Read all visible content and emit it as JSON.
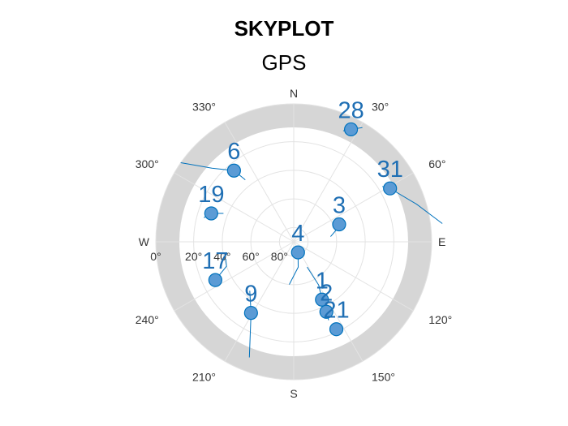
{
  "title": "SKYPLOT",
  "subtitle": "GPS",
  "chart_data": {
    "type": "scatter",
    "projection": "polar-skyplot",
    "cardinal_labels": {
      "N": "N",
      "E": "E",
      "S": "S",
      "W": "W"
    },
    "azimuth_tick_labels": [
      {
        "az": 30,
        "text": "30°"
      },
      {
        "az": 60,
        "text": "60°"
      },
      {
        "az": 120,
        "text": "120°"
      },
      {
        "az": 150,
        "text": "150°"
      },
      {
        "az": 210,
        "text": "210°"
      },
      {
        "az": 240,
        "text": "240°"
      },
      {
        "az": 300,
        "text": "300°"
      },
      {
        "az": 330,
        "text": "330°"
      }
    ],
    "elevation_tick_labels": [
      {
        "el": 0,
        "text": "0°"
      },
      {
        "el": 20,
        "text": "20°"
      },
      {
        "el": 40,
        "text": "40°"
      },
      {
        "el": 60,
        "text": "60°"
      },
      {
        "el": 80,
        "text": "80°"
      }
    ],
    "mask_band_elevation": [
      0,
      10
    ],
    "grid": true,
    "marker_color": "#0072bd",
    "marker_fill": "#5b9bd5",
    "satellites": [
      {
        "id": "28",
        "az": 27,
        "el": 5,
        "track": [
          [
            24,
            7
          ],
          [
            27,
            5
          ],
          [
            31,
            2
          ]
        ]
      },
      {
        "id": "31",
        "az": 61,
        "el": 13,
        "track": [
          [
            58,
            17
          ],
          [
            61,
            13
          ],
          [
            73,
            4
          ],
          [
            83,
            -5
          ]
        ]
      },
      {
        "id": "3",
        "az": 69,
        "el": 56,
        "track": [
          [
            82,
            64
          ],
          [
            72,
            57
          ],
          [
            69,
            56
          ]
        ]
      },
      {
        "id": "6",
        "az": 320,
        "el": 25,
        "track": [
          [
            305,
            0
          ],
          [
            312,
            13
          ],
          [
            320,
            25
          ],
          [
            322,
            35
          ]
        ]
      },
      {
        "id": "19",
        "az": 289,
        "el": 29,
        "track": [
          [
            285,
            25
          ],
          [
            289,
            29
          ],
          [
            292,
            37
          ]
        ]
      },
      {
        "id": "17",
        "az": 244,
        "el": 29,
        "track": [
          [
            244,
            29
          ],
          [
            250,
            40
          ],
          [
            256,
            41
          ]
        ]
      },
      {
        "id": "9",
        "az": 211,
        "el": 32,
        "track": [
          [
            201,
            6
          ],
          [
            211,
            32
          ],
          [
            222,
            44
          ]
        ]
      },
      {
        "id": "4",
        "az": 158,
        "el": 82,
        "track": [
          [
            186,
            60
          ],
          [
            170,
            72
          ],
          [
            158,
            82
          ]
        ]
      },
      {
        "id": "1",
        "az": 154,
        "el": 45,
        "track": [
          [
            154,
            45
          ],
          [
            150,
            55
          ],
          [
            152,
            70
          ]
        ]
      },
      {
        "id": "2",
        "az": 155,
        "el": 36,
        "track": [
          [
            156,
            30
          ],
          [
            155,
            36
          ],
          [
            152,
            48
          ]
        ]
      },
      {
        "id": "21",
        "az": 154,
        "el": 22,
        "track": [
          [
            154,
            22
          ],
          [
            154,
            26
          ]
        ]
      }
    ]
  }
}
